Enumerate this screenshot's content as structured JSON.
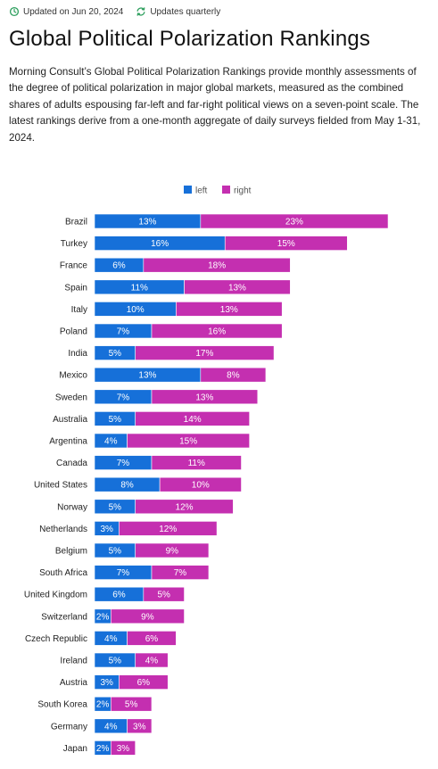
{
  "header": {
    "updated_label": "Updated on Jun 20, 2024",
    "frequency_label": "Updates quarterly",
    "title": "Global Political Polarization Rankings",
    "description": "Morning Consult’s Global Political Polarization Rankings provide monthly assessments of the degree of political polarization in major global markets, measured as the combined shares of adults espousing far-left and far-right political views on a seven-point scale. The latest rankings derive from a one-month aggregate of daily surveys fielded from May 1-31, 2024."
  },
  "icons": {
    "updated": "refresh-clock-icon",
    "frequency": "sync-icon"
  },
  "colors": {
    "left": "#1670d9",
    "right": "#c42fb0",
    "icon_green": "#2e9f5e"
  },
  "chart_data": {
    "type": "bar",
    "orientation": "horizontal",
    "stacked": true,
    "title": "",
    "xlabel": "",
    "ylabel": "",
    "legend_position": "top-center",
    "grid": false,
    "value_suffix": "%",
    "categories": [
      "Brazil",
      "Turkey",
      "France",
      "Spain",
      "Italy",
      "Poland",
      "India",
      "Mexico",
      "Sweden",
      "Australia",
      "Argentina",
      "Canada",
      "United States",
      "Norway",
      "Netherlands",
      "Belgium",
      "South Africa",
      "United Kingdom",
      "Switzerland",
      "Czech Republic",
      "Ireland",
      "Austria",
      "South Korea",
      "Germany",
      "Japan"
    ],
    "series": [
      {
        "name": "left",
        "color": "#1670d9",
        "values": [
          13,
          16,
          6,
          11,
          10,
          7,
          5,
          13,
          7,
          5,
          4,
          7,
          8,
          5,
          3,
          5,
          7,
          6,
          2,
          4,
          5,
          3,
          2,
          4,
          2
        ]
      },
      {
        "name": "right",
        "color": "#c42fb0",
        "values": [
          23,
          15,
          18,
          13,
          13,
          16,
          17,
          8,
          13,
          14,
          15,
          11,
          10,
          12,
          12,
          9,
          7,
          5,
          9,
          6,
          4,
          6,
          5,
          3,
          3
        ]
      }
    ]
  }
}
